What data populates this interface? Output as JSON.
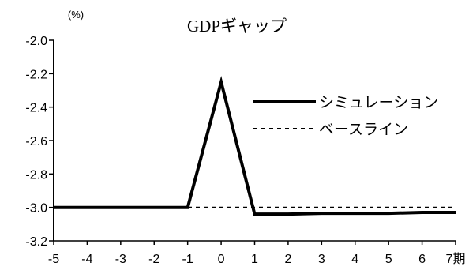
{
  "chart_data": {
    "type": "line",
    "title": "GDPギャップ",
    "unit_label": "(%)",
    "x": [
      -5,
      -4,
      -3,
      -2,
      -1,
      0,
      1,
      2,
      3,
      4,
      5,
      6,
      7
    ],
    "x_tick_labels": [
      "-5",
      "-4",
      "-3",
      "-2",
      "-1",
      "0",
      "1",
      "2",
      "3",
      "4",
      "5",
      "6",
      "7期"
    ],
    "y_tick_labels": [
      "-2.0",
      "-2.2",
      "-2.4",
      "-2.6",
      "-2.8",
      "-3.0",
      "-3.2"
    ],
    "ylim": [
      -3.2,
      -2.0
    ],
    "xlim": [
      -5,
      7
    ],
    "grid": false,
    "legend_position": "right",
    "series": [
      {
        "name": "シミュレーション",
        "style": "solid",
        "color": "#000000",
        "values": [
          -3.0,
          -3.0,
          -3.0,
          -3.0,
          -3.0,
          -2.25,
          -3.04,
          -3.04,
          -3.035,
          -3.035,
          -3.035,
          -3.03,
          -3.03
        ]
      },
      {
        "name": "ベースライン",
        "style": "dotted",
        "color": "#000000",
        "values": [
          -3.0,
          -3.0,
          -3.0,
          -3.0,
          -3.0,
          -3.0,
          -3.0,
          -3.0,
          -3.0,
          -3.0,
          -3.0,
          -3.0,
          -3.0
        ]
      }
    ]
  }
}
